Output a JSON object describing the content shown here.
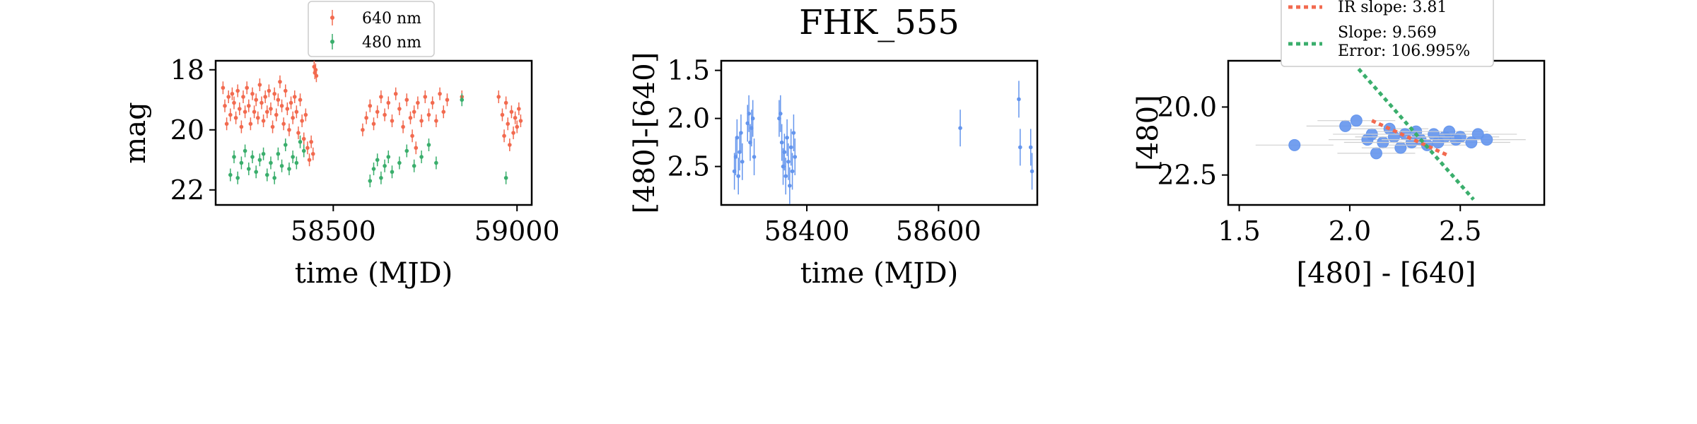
{
  "chart_data": [
    {
      "type": "scatter",
      "title": "",
      "xlabel": "time (MJD)",
      "ylabel": "mag",
      "xlim": [
        58180,
        59040
      ],
      "ylim": [
        22.5,
        17.7
      ],
      "y_inverted": true,
      "xticks": [
        58500,
        59000
      ],
      "xtick_labels": [
        "58500",
        "59000"
      ],
      "yticks": [
        18,
        20,
        22
      ],
      "ytick_labels": [
        "18",
        "20",
        "22"
      ],
      "legend": {
        "position": "top-center-outside",
        "entries": [
          "640 nm",
          "480 nm"
        ]
      },
      "grid": false,
      "series": [
        {
          "name": "640 nm",
          "color": "#f26a4f",
          "points": [
            [
              58200,
              18.6
            ],
            [
              58205,
              19.2
            ],
            [
              58210,
              19.8
            ],
            [
              58215,
              18.9
            ],
            [
              58220,
              19.5
            ],
            [
              58225,
              18.8
            ],
            [
              58230,
              19.1
            ],
            [
              58235,
              19.6
            ],
            [
              58240,
              18.7
            ],
            [
              58245,
              19.3
            ],
            [
              58250,
              19.9
            ],
            [
              58255,
              18.9
            ],
            [
              58260,
              19.4
            ],
            [
              58265,
              18.6
            ],
            [
              58270,
              19.2
            ],
            [
              58275,
              19.8
            ],
            [
              58280,
              18.8
            ],
            [
              58285,
              19.4
            ],
            [
              58290,
              19.0
            ],
            [
              58295,
              19.6
            ],
            [
              58300,
              18.5
            ],
            [
              58305,
              19.1
            ],
            [
              58310,
              19.7
            ],
            [
              58315,
              18.9
            ],
            [
              58320,
              19.4
            ],
            [
              58325,
              18.7
            ],
            [
              58330,
              19.3
            ],
            [
              58335,
              19.9
            ],
            [
              58340,
              18.8
            ],
            [
              58345,
              19.5
            ],
            [
              58350,
              19.0
            ],
            [
              58355,
              18.4
            ],
            [
              58360,
              19.2
            ],
            [
              58365,
              19.8
            ],
            [
              58370,
              18.7
            ],
            [
              58375,
              19.3
            ],
            [
              58380,
              20.0
            ],
            [
              58385,
              19.1
            ],
            [
              58390,
              19.6
            ],
            [
              58395,
              18.9
            ],
            [
              58400,
              19.4
            ],
            [
              58405,
              20.1
            ],
            [
              58410,
              19.0
            ],
            [
              58415,
              19.7
            ],
            [
              58420,
              20.3
            ],
            [
              58425,
              19.5
            ],
            [
              58430,
              20.6
            ],
            [
              58435,
              21.0
            ],
            [
              58440,
              20.4
            ],
            [
              58445,
              20.8
            ],
            [
              58448,
              17.9
            ],
            [
              58450,
              18.1
            ],
            [
              58452,
              18.0
            ],
            [
              58454,
              18.2
            ],
            [
              58580,
              20.0
            ],
            [
              58590,
              19.6
            ],
            [
              58600,
              19.2
            ],
            [
              58610,
              19.8
            ],
            [
              58620,
              19.4
            ],
            [
              58630,
              18.9
            ],
            [
              58640,
              19.5
            ],
            [
              58650,
              19.1
            ],
            [
              58660,
              19.7
            ],
            [
              58670,
              18.8
            ],
            [
              58680,
              19.3
            ],
            [
              58690,
              19.9
            ],
            [
              58700,
              19.0
            ],
            [
              58710,
              19.6
            ],
            [
              58715,
              20.2
            ],
            [
              58720,
              19.4
            ],
            [
              58725,
              20.6
            ],
            [
              58730,
              19.1
            ],
            [
              58740,
              19.7
            ],
            [
              58750,
              18.9
            ],
            [
              58760,
              19.5
            ],
            [
              58770,
              19.1
            ],
            [
              58780,
              19.7
            ],
            [
              58790,
              18.8
            ],
            [
              58800,
              19.4
            ],
            [
              58810,
              19.0
            ],
            [
              58850,
              18.9
            ],
            [
              58950,
              18.9
            ],
            [
              58960,
              19.5
            ],
            [
              58965,
              20.2
            ],
            [
              58970,
              19.1
            ],
            [
              58975,
              19.8
            ],
            [
              58980,
              20.5
            ],
            [
              58985,
              19.4
            ],
            [
              58990,
              20.1
            ],
            [
              58995,
              19.6
            ],
            [
              59000,
              19.9
            ],
            [
              59005,
              19.3
            ],
            [
              59010,
              19.7
            ]
          ]
        },
        {
          "name": "480 nm",
          "color": "#3aae6c",
          "points": [
            [
              58220,
              21.5
            ],
            [
              58230,
              20.9
            ],
            [
              58240,
              21.6
            ],
            [
              58250,
              21.1
            ],
            [
              58260,
              20.7
            ],
            [
              58270,
              21.3
            ],
            [
              58280,
              20.9
            ],
            [
              58290,
              21.4
            ],
            [
              58300,
              21.0
            ],
            [
              58310,
              20.8
            ],
            [
              58320,
              21.5
            ],
            [
              58330,
              21.1
            ],
            [
              58340,
              21.6
            ],
            [
              58350,
              20.8
            ],
            [
              58360,
              21.2
            ],
            [
              58370,
              20.5
            ],
            [
              58380,
              21.3
            ],
            [
              58390,
              20.9
            ],
            [
              58400,
              21.1
            ],
            [
              58410,
              20.4
            ],
            [
              58420,
              20.7
            ],
            [
              58600,
              21.7
            ],
            [
              58610,
              21.3
            ],
            [
              58620,
              21.0
            ],
            [
              58630,
              21.6
            ],
            [
              58640,
              21.2
            ],
            [
              58650,
              20.9
            ],
            [
              58660,
              21.4
            ],
            [
              58680,
              21.1
            ],
            [
              58700,
              20.7
            ],
            [
              58720,
              21.2
            ],
            [
              58740,
              20.9
            ],
            [
              58760,
              20.5
            ],
            [
              58780,
              21.1
            ],
            [
              58850,
              19.0
            ],
            [
              58970,
              21.6
            ]
          ]
        }
      ]
    },
    {
      "type": "scatter",
      "title": "FHK_555",
      "xlabel": "time (MJD)",
      "ylabel": "[480]-[640]",
      "xlim": [
        58270,
        58750
      ],
      "ylim": [
        2.9,
        1.4
      ],
      "y_inverted": true,
      "xticks": [
        58400,
        58600
      ],
      "xtick_labels": [
        "58400",
        "58600"
      ],
      "yticks": [
        1.5,
        2.0,
        2.5
      ],
      "ytick_labels": [
        "1.5",
        "2.0",
        "2.5"
      ],
      "grid": false,
      "series": [
        {
          "color": "#6495ed",
          "points": [
            [
              58290,
              2.55
            ],
            [
              58292,
              2.4
            ],
            [
              58294,
              2.2
            ],
            [
              58296,
              2.6
            ],
            [
              58298,
              2.35
            ],
            [
              58300,
              2.15
            ],
            [
              58302,
              2.45
            ],
            [
              58310,
              2.05
            ],
            [
              58312,
              1.95
            ],
            [
              58314,
              2.25
            ],
            [
              58316,
              2.1
            ],
            [
              58318,
              2.0
            ],
            [
              58320,
              2.4
            ],
            [
              58358,
              2.0
            ],
            [
              58360,
              1.95
            ],
            [
              58362,
              2.25
            ],
            [
              58364,
              2.5
            ],
            [
              58366,
              2.35
            ],
            [
              58368,
              2.6
            ],
            [
              58370,
              2.2
            ],
            [
              58372,
              2.45
            ],
            [
              58374,
              2.7
            ],
            [
              58376,
              2.3
            ],
            [
              58378,
              2.55
            ],
            [
              58380,
              2.15
            ],
            [
              58382,
              2.4
            ],
            [
              58633,
              2.1
            ],
            [
              58722,
              1.8
            ],
            [
              58724,
              2.3
            ],
            [
              58740,
              2.3
            ],
            [
              58742,
              2.55
            ]
          ]
        }
      ]
    },
    {
      "type": "scatter",
      "title": "",
      "xlabel": "[480] - [640]",
      "ylabel": "[480]",
      "xlim": [
        1.45,
        2.88
      ],
      "ylim": [
        23.6,
        18.3
      ],
      "y_inverted": true,
      "xticks": [
        1.5,
        2.0,
        2.5
      ],
      "xtick_labels": [
        "1.5",
        "2.0",
        "2.5"
      ],
      "yticks": [
        20.0,
        22.5
      ],
      "ytick_labels": [
        "20.0",
        "22.5"
      ],
      "legend": {
        "position": "top-center-outside",
        "entries": [
          "IR slope: 3.81",
          "Slope: 9.569\nError: 106.995%"
        ]
      },
      "grid": false,
      "series": [
        {
          "color": "#6495ed",
          "points": [
            [
              1.75,
              21.4
            ],
            [
              1.98,
              20.7
            ],
            [
              2.03,
              20.5
            ],
            [
              2.08,
              21.2
            ],
            [
              2.1,
              21.0
            ],
            [
              2.12,
              21.7
            ],
            [
              2.15,
              21.3
            ],
            [
              2.18,
              20.8
            ],
            [
              2.2,
              21.1
            ],
            [
              2.23,
              21.5
            ],
            [
              2.25,
              21.0
            ],
            [
              2.28,
              21.3
            ],
            [
              2.3,
              20.9
            ],
            [
              2.32,
              21.2
            ],
            [
              2.35,
              21.4
            ],
            [
              2.38,
              21.0
            ],
            [
              2.4,
              21.3
            ],
            [
              2.43,
              21.1
            ],
            [
              2.45,
              20.9
            ],
            [
              2.48,
              21.2
            ],
            [
              2.5,
              21.1
            ],
            [
              2.55,
              21.3
            ],
            [
              2.58,
              21.0
            ],
            [
              2.62,
              21.2
            ]
          ]
        },
        {
          "name": "IR slope: 3.81",
          "color": "#f26a4f",
          "line_style": "dotted",
          "line": [
            [
              2.1,
              20.5
            ],
            [
              2.45,
              21.8
            ]
          ]
        },
        {
          "name": "Slope: 9.569",
          "color": "#3aae6c",
          "line_style": "dotted",
          "line": [
            [
              2.04,
              18.6
            ],
            [
              2.56,
              23.4
            ]
          ]
        }
      ]
    }
  ]
}
